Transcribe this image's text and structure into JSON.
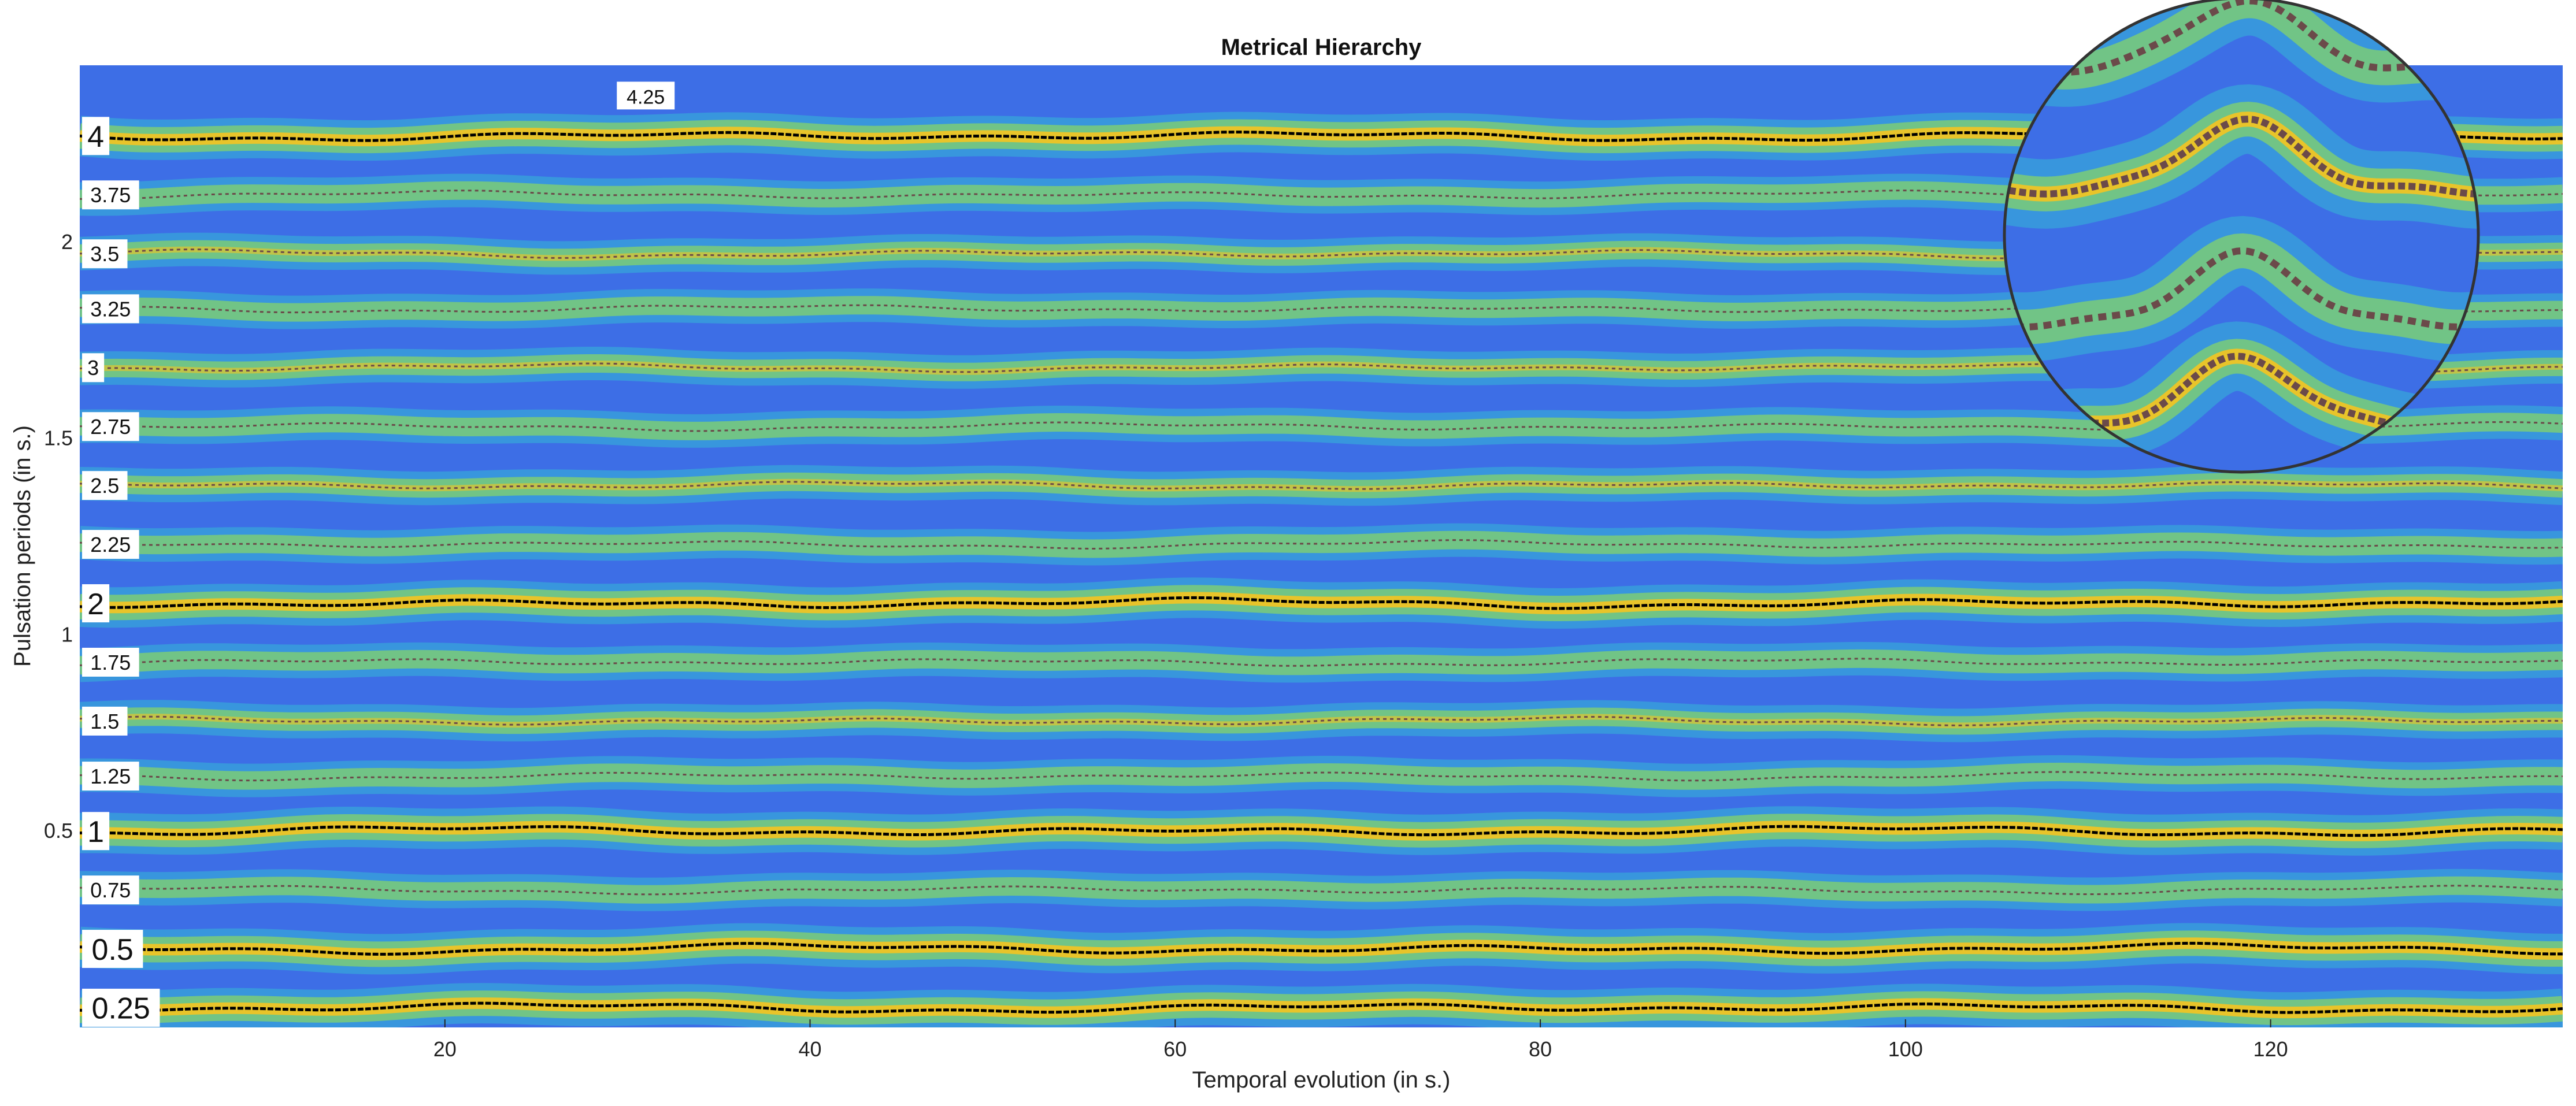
{
  "chart_data": {
    "type": "heatmap",
    "title": "Metrical Hierarchy",
    "xlabel": "Temporal evolution (in s.)",
    "ylabel": "Pulsation periods (in s.)",
    "xlim": [
      0,
      136
    ],
    "ylim": [
      0,
      2.45
    ],
    "x_ticks": [
      "20",
      "40",
      "60",
      "80",
      "100",
      "120"
    ],
    "x_tick_values": [
      20,
      40,
      60,
      80,
      100,
      120
    ],
    "y_ticks": [
      "0.5",
      "1",
      "1.5",
      "2"
    ],
    "y_tick_values": [
      0.5,
      1,
      1.5,
      2
    ],
    "colormap": "parula",
    "colors": {
      "background": "#3d6ee6",
      "band_low": "#35b8d6",
      "band_mid": "#80d070",
      "band_high": "#f5c420",
      "trace_main": "#000000",
      "trace_secondary": "#6b4a4a",
      "inset_border": "#333333"
    },
    "levels": [
      {
        "label": "4",
        "period": 2.27,
        "main": true
      },
      {
        "label": "3.75",
        "period": 2.12,
        "main": false
      },
      {
        "label": "3.5",
        "period": 1.97,
        "main": false
      },
      {
        "label": "3.25",
        "period": 1.83,
        "main": false
      },
      {
        "label": "3",
        "period": 1.68,
        "main": false
      },
      {
        "label": "2.75",
        "period": 1.53,
        "main": false
      },
      {
        "label": "2.5",
        "period": 1.38,
        "main": false
      },
      {
        "label": "2.25",
        "period": 1.23,
        "main": false
      },
      {
        "label": "2",
        "period": 1.08,
        "main": true
      },
      {
        "label": "1.75",
        "period": 0.93,
        "main": false
      },
      {
        "label": "1.5",
        "period": 0.78,
        "main": false
      },
      {
        "label": "1.25",
        "period": 0.64,
        "main": false
      },
      {
        "label": "1",
        "period": 0.5,
        "main": true
      },
      {
        "label": "0.75",
        "period": 0.35,
        "main": false
      },
      {
        "label": "0.5",
        "period": 0.2,
        "main": true
      },
      {
        "label": "0.25",
        "period": 0.05,
        "main": true
      }
    ],
    "extra_level": {
      "label": "4.25",
      "period": 2.37,
      "time": 31
    },
    "inset": {
      "type": "magnifier",
      "center_time": 118,
      "center_period": 2.04
    }
  }
}
